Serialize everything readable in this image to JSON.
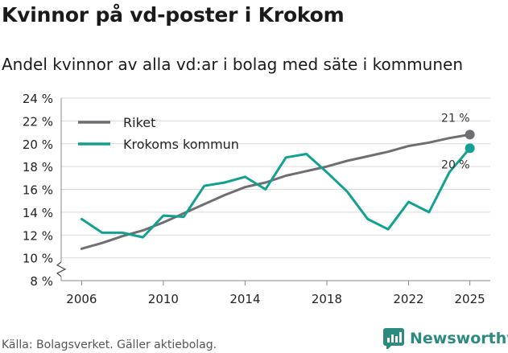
{
  "title": "Kvinnor på vd-poster i Krokom",
  "subtitle": "Andel kvinnor av alla vd:ar i bolag med säte i kommunen",
  "source": "Källa: Bolagsverket. Gäller aktiebolag.",
  "brand": "Newsworthy",
  "colors": {
    "riket": "#6e6e73",
    "krokom": "#12a191",
    "grid": "#d9d9d9",
    "axis": "#888888",
    "brand": "#2c8a7e"
  },
  "chart_data": {
    "type": "line",
    "title": "Kvinnor på vd-poster i Krokom",
    "xlabel": "",
    "ylabel": "",
    "xlim": [
      2005,
      2026
    ],
    "ylim": [
      8,
      24
    ],
    "x_ticks": [
      2006,
      2010,
      2014,
      2018,
      2022,
      2025
    ],
    "x_tick_labels": [
      "2006",
      "2010",
      "2014",
      "2018",
      "2022",
      "2025"
    ],
    "y_ticks": [
      8,
      10,
      12,
      14,
      16,
      18,
      20,
      22,
      24
    ],
    "y_tick_labels": [
      "8 %",
      "10 %",
      "12 %",
      "14 %",
      "16 %",
      "18 %",
      "20 %",
      "22 %",
      "24 %"
    ],
    "axis_break": true,
    "legend_position": "top-left",
    "series": [
      {
        "name": "Riket",
        "x": [
          2006,
          2007,
          2008,
          2009,
          2010,
          2011,
          2012,
          2013,
          2014,
          2015,
          2016,
          2017,
          2018,
          2019,
          2020,
          2021,
          2022,
          2023,
          2024,
          2025
        ],
        "values": [
          10.8,
          11.3,
          11.9,
          12.4,
          13.1,
          13.9,
          14.7,
          15.5,
          16.2,
          16.6,
          17.2,
          17.6,
          18.0,
          18.5,
          18.9,
          19.3,
          19.8,
          20.1,
          20.5,
          20.8
        ],
        "end_label": "21 %"
      },
      {
        "name": "Krokoms kommun",
        "x": [
          2006,
          2007,
          2008,
          2009,
          2010,
          2011,
          2012,
          2013,
          2014,
          2015,
          2016,
          2017,
          2018,
          2019,
          2020,
          2021,
          2022,
          2023,
          2024,
          2025
        ],
        "values": [
          13.4,
          12.2,
          12.2,
          11.8,
          13.7,
          13.6,
          16.3,
          16.6,
          17.1,
          16.0,
          18.8,
          19.1,
          17.5,
          15.8,
          13.4,
          12.5,
          14.9,
          14.0,
          17.5,
          19.6
        ],
        "end_label": "20 %"
      }
    ]
  }
}
